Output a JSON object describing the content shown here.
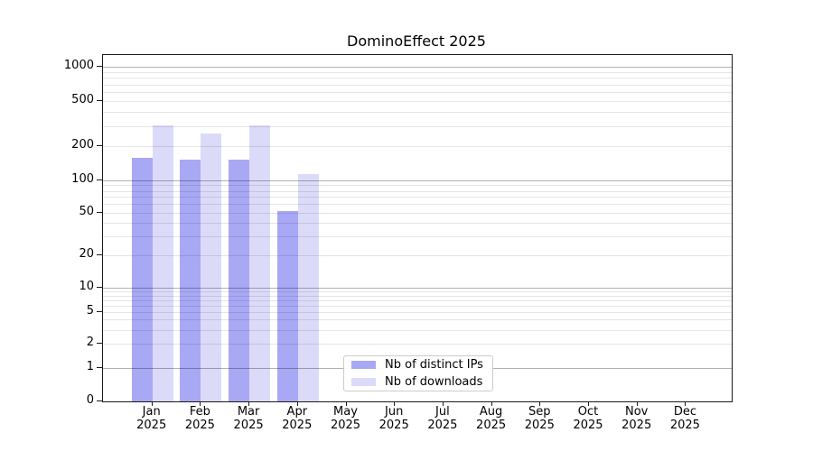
{
  "title": "DominoEffect 2025",
  "chart_data": {
    "type": "bar",
    "title": "DominoEffect 2025",
    "categories": [
      "Jan",
      "Feb",
      "Mar",
      "Apr",
      "May",
      "Jun",
      "Jul",
      "Aug",
      "Sep",
      "Oct",
      "Nov",
      "Dec"
    ],
    "year": "2025",
    "series": [
      {
        "name": "Nb of distinct IPs",
        "color": "#a8a8f5",
        "values": [
          158,
          152,
          152,
          52,
          0,
          0,
          0,
          0,
          0,
          0,
          0,
          0
        ]
      },
      {
        "name": "Nb of downloads",
        "color": "#dbdbf9",
        "values": [
          305,
          260,
          305,
          114,
          0,
          0,
          0,
          0,
          0,
          0,
          0,
          0
        ]
      }
    ],
    "yscale": "symlog",
    "yticks": [
      0,
      1,
      2,
      5,
      10,
      20,
      50,
      100,
      200,
      500,
      1000
    ],
    "ylim": [
      0,
      1000
    ],
    "grid": "on",
    "legend_position": "lower center-left inside plot",
    "xlabel": "",
    "ylabel": ""
  }
}
